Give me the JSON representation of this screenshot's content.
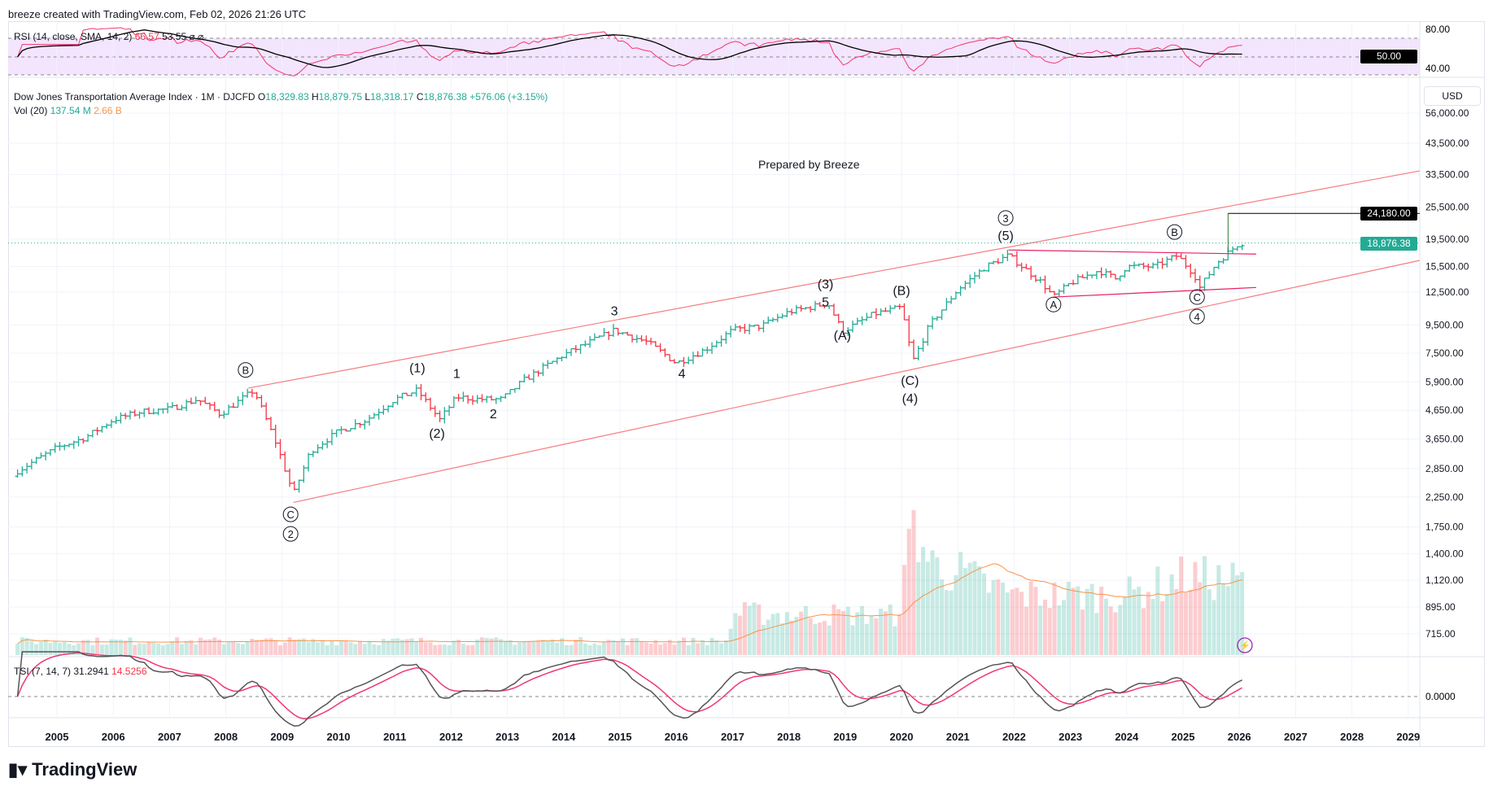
{
  "header": {
    "credit": "breeze created with TradingView.com, Feb 02, 2026 21:26 UTC"
  },
  "rsi": {
    "label": "RSI (14, close, SMA, 14, 2)",
    "value": "66.57",
    "sma": "53.55",
    "icons": "⌀ ⌀",
    "axis": [
      "80.00",
      "40.00"
    ],
    "midline_tag": "50.00"
  },
  "symbol": {
    "name": "Dow Jones Transportation Average Index · 1M · DJCFD",
    "o_label": "O",
    "o": "18,329.83",
    "h_label": "H",
    "h": "18,879.75",
    "l_label": "L",
    "l": "18,318.17",
    "c_label": "C",
    "c": "18,876.38",
    "change": "+576.06 (+3.15%)"
  },
  "volume": {
    "label": "Vol (20)",
    "value": "137.54 M",
    "ma": "2.66 B"
  },
  "currency": "USD",
  "annotation": "Prepared by Breeze",
  "price_axis": [
    "56,000.00",
    "43,500.00",
    "33,500.00",
    "25,500.00",
    "19,500.00",
    "15,500.00",
    "12,500.00",
    "9,500.00",
    "7,500.00",
    "5,900.00",
    "4,650.00",
    "3,650.00",
    "2,850.00",
    "2,250.00",
    "1,750.00",
    "1,400.00",
    "1,120.00",
    "895.00",
    "715.00"
  ],
  "target_tag": "24,180.00",
  "last_price_tag": "18,876.38",
  "tsi": {
    "label": "TSI (7, 14, 7)",
    "value": "31.2941",
    "signal": "14.5256",
    "axis": "0.0000"
  },
  "time_axis": [
    "2005",
    "2006",
    "2007",
    "2008",
    "2009",
    "2010",
    "2011",
    "2012",
    "2013",
    "2014",
    "2015",
    "2016",
    "2017",
    "2018",
    "2019",
    "2020",
    "2021",
    "2022",
    "2023",
    "2024",
    "2025",
    "2026",
    "2027",
    "2028",
    "2029"
  ],
  "colors": {
    "up": "#22ab94",
    "down": "#f23645",
    "channel": "#f77c80",
    "triangle": "#e91e63",
    "rsi": "#f23673",
    "tsi": "#555555"
  },
  "brand": "TradingView",
  "chart_data": {
    "type": "ohlc",
    "price_waypoints": [
      [
        2004.3,
        2800
      ],
      [
        2005.0,
        3400
      ],
      [
        2005.5,
        3700
      ],
      [
        2006.0,
        4300
      ],
      [
        2006.5,
        4600
      ],
      [
        2007.0,
        4700
      ],
      [
        2007.5,
        5100
      ],
      [
        2007.9,
        4500
      ],
      [
        2008.5,
        5500
      ],
      [
        2008.9,
        3500
      ],
      [
        2009.2,
        2300
      ],
      [
        2009.5,
        3300
      ],
      [
        2010.0,
        3900
      ],
      [
        2010.5,
        4300
      ],
      [
        2011.0,
        5100
      ],
      [
        2011.4,
        5500
      ],
      [
        2011.8,
        4300
      ],
      [
        2012.1,
        5200
      ],
      [
        2012.5,
        5100
      ],
      [
        2012.9,
        5100
      ],
      [
        2013.3,
        6000
      ],
      [
        2014.0,
        7400
      ],
      [
        2014.9,
        9100
      ],
      [
        2015.5,
        8200
      ],
      [
        2016.0,
        6900
      ],
      [
        2016.5,
        7700
      ],
      [
        2017.0,
        9100
      ],
      [
        2017.5,
        9400
      ],
      [
        2018.0,
        10600
      ],
      [
        2018.7,
        11400
      ],
      [
        2018.95,
        9000
      ],
      [
        2019.5,
        10400
      ],
      [
        2020.0,
        11000
      ],
      [
        2020.2,
        7000
      ],
      [
        2020.5,
        9500
      ],
      [
        2021.0,
        12800
      ],
      [
        2021.5,
        15500
      ],
      [
        2021.9,
        17000
      ],
      [
        2022.5,
        13500
      ],
      [
        2022.7,
        12000
      ],
      [
        2023.0,
        13500
      ],
      [
        2023.5,
        15000
      ],
      [
        2023.8,
        14000
      ],
      [
        2024.0,
        15500
      ],
      [
        2024.5,
        15500
      ],
      [
        2024.9,
        17000
      ],
      [
        2025.2,
        14500
      ],
      [
        2025.3,
        13000
      ],
      [
        2025.6,
        16000
      ],
      [
        2026.0,
        18876
      ]
    ],
    "volume_waypoints": [
      [
        2004.3,
        150
      ],
      [
        2016.9,
        150
      ],
      [
        2017.0,
        450
      ],
      [
        2019.9,
        430
      ],
      [
        2020.2,
        1500
      ],
      [
        2020.5,
        1000
      ],
      [
        2021.0,
        900
      ],
      [
        2022.0,
        650
      ],
      [
        2024.0,
        650
      ],
      [
        2025.0,
        850
      ],
      [
        2026.0,
        800
      ]
    ],
    "wave_labels": [
      {
        "text": "B",
        "circled": true,
        "year": 2008.35,
        "price": 6300
      },
      {
        "text": "C",
        "circled": true,
        "year": 2009.15,
        "price": 1880
      },
      {
        "text": "2",
        "circled": true,
        "year": 2009.15,
        "price": 1680
      },
      {
        "text": "(1)",
        "year": 2011.4,
        "price": 6400
      },
      {
        "text": "1",
        "year": 2012.1,
        "price": 6100
      },
      {
        "text": "(2)",
        "year": 2011.75,
        "price": 3700
      },
      {
        "text": "2",
        "year": 2012.75,
        "price": 4350
      },
      {
        "text": "3",
        "year": 2014.9,
        "price": 10300
      },
      {
        "text": "4",
        "year": 2016.1,
        "price": 6100
      },
      {
        "text": "(3)",
        "year": 2018.65,
        "price": 12900
      },
      {
        "text": "5",
        "year": 2018.65,
        "price": 11900
      },
      {
        "text": "(A)",
        "year": 2018.95,
        "price": 8400
      },
      {
        "text": "(B)",
        "year": 2020.0,
        "price": 12200
      },
      {
        "text": "(C)",
        "year": 2020.15,
        "price": 5750
      },
      {
        "text": "(4)",
        "year": 2020.15,
        "price": 5300
      },
      {
        "text": "3",
        "circled": true,
        "year": 2021.85,
        "price": 22500
      },
      {
        "text": "(5)",
        "year": 2021.85,
        "price": 20300
      },
      {
        "text": "A",
        "circled": true,
        "year": 2022.7,
        "price": 10900
      },
      {
        "text": "B",
        "circled": true,
        "year": 2024.85,
        "price": 20000
      },
      {
        "text": "C",
        "circled": true,
        "year": 2025.25,
        "price": 11600
      },
      {
        "text": "4",
        "circled": true,
        "year": 2025.25,
        "price": 10400
      }
    ],
    "channel_upper": [
      [
        2008.4,
        5600
      ],
      [
        2029.2,
        34500
      ]
    ],
    "channel_lower": [
      [
        2009.2,
        2150
      ],
      [
        2029.2,
        16300
      ]
    ],
    "triangle_upper": [
      [
        2021.9,
        17800
      ],
      [
        2026.3,
        17200
      ]
    ],
    "triangle_lower": [
      [
        2022.7,
        12000
      ],
      [
        2026.3,
        13000
      ]
    ],
    "target": {
      "year": 2025.8,
      "from": 17500,
      "to": 24180
    }
  }
}
